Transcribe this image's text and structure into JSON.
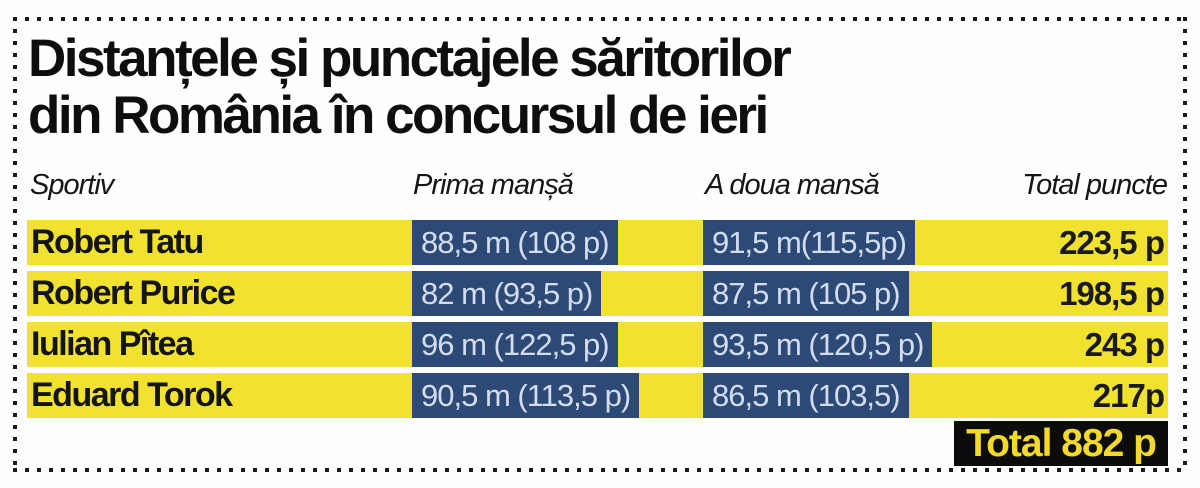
{
  "title": {
    "line1": "Distanțele și punctajele săritorilor",
    "line2": "din România în concursul de ieri"
  },
  "table": {
    "columns": [
      "Sportiv",
      "Prima manșă",
      "A doua mansă",
      "Total puncte"
    ],
    "rows": [
      {
        "name": "Robert Tatu",
        "run1": "88,5 m (108 p)",
        "run2": "91,5 m(115,5p)",
        "total": "223,5 p"
      },
      {
        "name": "Robert Purice",
        "run1": "82 m (93,5 p)",
        "run2": "87,5 m (105 p)",
        "total": "198,5 p"
      },
      {
        "name": "Iulian Pîtea",
        "run1": "96 m (122,5 p)",
        "run2": "93,5 m (120,5 p)",
        "total": "243 p"
      },
      {
        "name": "Eduard Torok",
        "run1": "90,5 m (113,5 p)",
        "run2": "86,5 m (103,5)",
        "total": "217p"
      }
    ],
    "grand_total": "Total 882 p"
  },
  "colors": {
    "row_highlight_yellow": "#f2e230",
    "run_cell_blue": "#2d4a77",
    "run_cell_text": "#d3ddef",
    "grand_total_bg": "#0c0c0c",
    "grand_total_text": "#f2d92b",
    "headline_text": "#0e0e0e",
    "dotted_border": "#1c1c1c"
  }
}
